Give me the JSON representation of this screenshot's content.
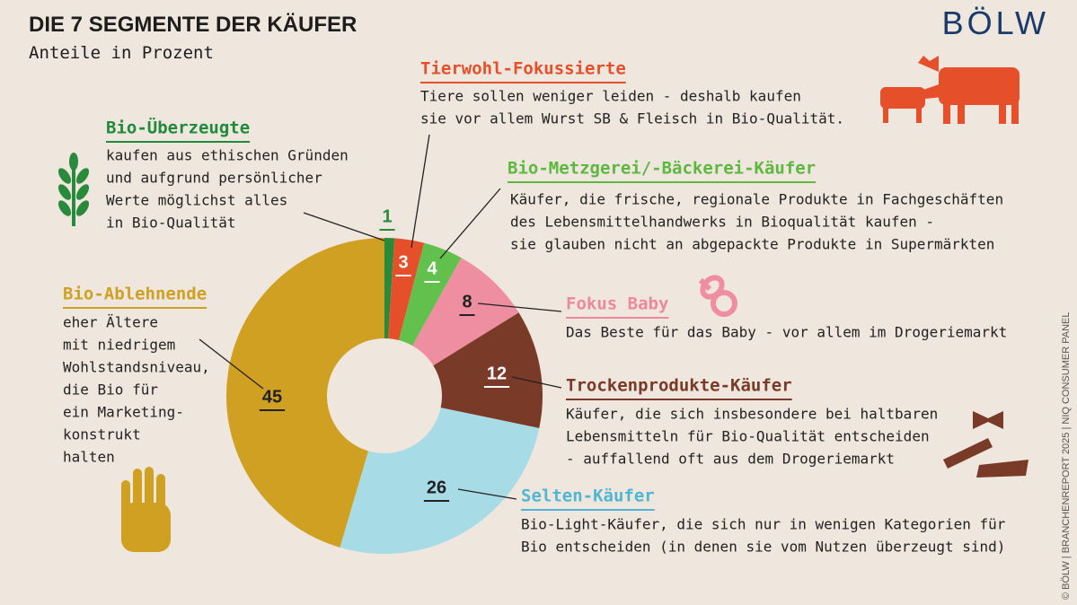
{
  "chart_data": {
    "type": "donut",
    "title": "DIE 7 SEGMENTE DER KÄUFER",
    "subtitle": "Anteile in Prozent",
    "logo": "BÖLW",
    "credit": "© BÖLW | BRANCHENREPORT 2025 | NIQ CONSUMER PANEL",
    "categories": [
      "Bio-Überzeugte",
      "Tierwohl-Fokussierte",
      "Bio-Metzgerei/-Bäckerei-Käufer",
      "Fokus Baby",
      "Trockenprodukte-Käufer",
      "Selten-Käufer",
      "Bio-Ablehnende"
    ],
    "values": [
      1,
      3,
      4,
      8,
      12,
      26,
      45
    ],
    "colors": [
      "#2a8a3c",
      "#e5502a",
      "#62c14d",
      "#ef8ea0",
      "#7a3a28",
      "#a7dce6",
      "#cfa022"
    ],
    "descriptions": [
      [
        "kaufen aus ethischen Gründen",
        "und aufgrund persönlicher",
        "Werte möglichst alles",
        "in Bio-Qualität"
      ],
      [
        "Tiere sollen weniger leiden - deshalb kaufen",
        "sie vor allem Wurst SB & Fleisch in Bio-Qualität."
      ],
      [
        "Käufer, die frische, regionale Produkte in Fachgeschäften",
        "des Lebensmittelhandwerks in Bioqualität kaufen -",
        "sie glauben nicht an abgepackte Produkte in Supermärkten"
      ],
      [
        "Das Beste für das Baby - vor allem im Drogeriemarkt"
      ],
      [
        "Käufer, die sich insbesondere bei haltbaren",
        "Lebensmitteln für Bio-Qualität entscheiden",
        "- auffallend oft aus dem Drogeriemarkt"
      ],
      [
        "Bio-Light-Käufer, die sich nur in wenigen Kategorien für",
        "Bio entscheiden (in denen sie vom Nutzen überzeugt sind)"
      ],
      [
        "eher Ältere",
        "mit niedrigem",
        "Wohlstandsniveau,",
        "die Bio für",
        "ein Marketing-",
        "konstrukt",
        "halten"
      ]
    ]
  }
}
